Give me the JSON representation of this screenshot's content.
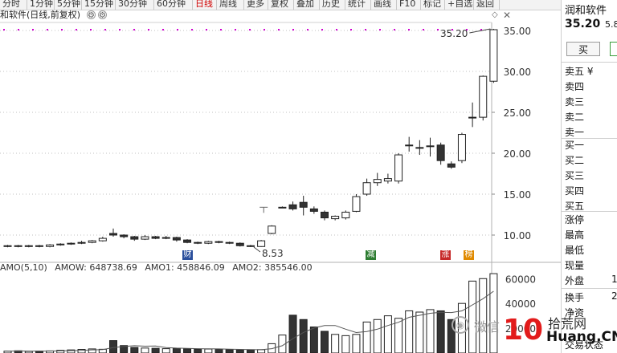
{
  "toolbar": {
    "items": [
      "分时",
      "1分钟",
      "5分钟",
      "15分钟",
      "30分钟",
      "60分钟",
      "日线",
      "周线",
      "更多",
      "复权",
      "叠加",
      "历史",
      "统计",
      "画线",
      "F10",
      "标记",
      "+自选",
      "返回"
    ],
    "active_index": 6
  },
  "title": {
    "stock": "和软件",
    "label": "和软件(日线,前复权)"
  },
  "chart": {
    "price_label_high": "35.20",
    "price_label_low": "8.53",
    "y_ticks": [
      "35.00",
      "30.00",
      "25.00",
      "20.00",
      "15.00",
      "10.00"
    ],
    "markers": [
      {
        "text": "财",
        "color": "#2a4f9c"
      },
      {
        "text": "减",
        "color": "#2e7d32"
      },
      {
        "text": "涨",
        "color": "#c62828"
      },
      {
        "text": "榜",
        "color": "#e08a00"
      }
    ]
  },
  "chart_data": {
    "type": "candlestick",
    "ylim": [
      7,
      37
    ],
    "y_ticks": [
      35,
      30,
      25,
      20,
      15,
      10
    ],
    "candles": [
      {
        "o": 8.6,
        "c": 8.7,
        "h": 8.8,
        "l": 8.5
      },
      {
        "o": 8.7,
        "c": 8.6,
        "h": 8.8,
        "l": 8.5
      },
      {
        "o": 8.6,
        "c": 8.7,
        "h": 8.8,
        "l": 8.5
      },
      {
        "o": 8.7,
        "c": 8.6,
        "h": 8.8,
        "l": 8.5
      },
      {
        "o": 8.6,
        "c": 8.8,
        "h": 8.9,
        "l": 8.5
      },
      {
        "o": 8.8,
        "c": 8.9,
        "h": 9.0,
        "l": 8.7
      },
      {
        "o": 8.9,
        "c": 9.0,
        "h": 9.1,
        "l": 8.8
      },
      {
        "o": 9.0,
        "c": 9.1,
        "h": 9.3,
        "l": 8.9
      },
      {
        "o": 9.1,
        "c": 9.3,
        "h": 9.4,
        "l": 9.0
      },
      {
        "o": 9.3,
        "c": 9.6,
        "h": 9.8,
        "l": 9.2
      },
      {
        "o": 10.2,
        "c": 10.0,
        "h": 10.8,
        "l": 9.8
      },
      {
        "o": 10.0,
        "c": 9.8,
        "h": 10.1,
        "l": 9.6
      },
      {
        "o": 9.8,
        "c": 9.5,
        "h": 9.9,
        "l": 9.3
      },
      {
        "o": 9.5,
        "c": 9.8,
        "h": 10.0,
        "l": 9.4
      },
      {
        "o": 9.8,
        "c": 9.6,
        "h": 9.9,
        "l": 9.5
      },
      {
        "o": 9.6,
        "c": 9.7,
        "h": 9.9,
        "l": 9.5
      },
      {
        "o": 9.7,
        "c": 9.4,
        "h": 9.8,
        "l": 9.2
      },
      {
        "o": 9.4,
        "c": 9.1,
        "h": 9.5,
        "l": 9.0
      },
      {
        "o": 9.1,
        "c": 9.0,
        "h": 9.2,
        "l": 8.9
      },
      {
        "o": 9.0,
        "c": 9.2,
        "h": 9.3,
        "l": 8.9
      },
      {
        "o": 9.2,
        "c": 9.1,
        "h": 9.3,
        "l": 9.0
      },
      {
        "o": 9.1,
        "c": 9.0,
        "h": 9.2,
        "l": 8.9
      },
      {
        "o": 9.0,
        "c": 8.7,
        "h": 9.1,
        "l": 8.6
      },
      {
        "o": 8.7,
        "c": 8.6,
        "h": 8.8,
        "l": 8.53
      },
      {
        "o": 8.6,
        "c": 9.3,
        "h": 9.4,
        "l": 8.55
      },
      {
        "o": 10.2,
        "c": 11.1,
        "h": 11.2,
        "l": 10.1
      },
      {
        "o": 13.4,
        "c": 13.4,
        "h": 13.5,
        "l": 13.3
      },
      {
        "o": 13.7,
        "c": 13.2,
        "h": 14.1,
        "l": 13.0
      },
      {
        "o": 14.0,
        "c": 13.4,
        "h": 14.8,
        "l": 12.4
      },
      {
        "o": 13.2,
        "c": 12.9,
        "h": 13.5,
        "l": 12.6
      },
      {
        "o": 12.8,
        "c": 12.1,
        "h": 13.0,
        "l": 11.8
      },
      {
        "o": 12.0,
        "c": 12.3,
        "h": 12.4,
        "l": 11.8
      },
      {
        "o": 12.1,
        "c": 12.8,
        "h": 13.0,
        "l": 11.9
      },
      {
        "o": 12.9,
        "c": 14.7,
        "h": 15.0,
        "l": 12.8
      },
      {
        "o": 15.0,
        "c": 16.4,
        "h": 16.9,
        "l": 14.8
      },
      {
        "o": 16.4,
        "c": 16.8,
        "h": 17.6,
        "l": 16.0
      },
      {
        "o": 16.6,
        "c": 16.9,
        "h": 17.5,
        "l": 16.3
      },
      {
        "o": 16.6,
        "c": 19.8,
        "h": 20.0,
        "l": 16.3
      },
      {
        "o": 21.0,
        "c": 21.0,
        "h": 22.0,
        "l": 20.2
      },
      {
        "o": 20.7,
        "c": 20.7,
        "h": 21.6,
        "l": 19.8
      },
      {
        "o": 20.9,
        "c": 20.9,
        "h": 21.9,
        "l": 19.6
      },
      {
        "o": 21.0,
        "c": 19.1,
        "h": 21.3,
        "l": 18.6
      },
      {
        "o": 18.7,
        "c": 18.3,
        "h": 19.0,
        "l": 18.1
      },
      {
        "o": 19.1,
        "c": 22.3,
        "h": 22.5,
        "l": 18.8
      },
      {
        "o": 24.4,
        "c": 24.4,
        "h": 26.2,
        "l": 23.2
      },
      {
        "o": 24.4,
        "c": 29.4,
        "h": 29.5,
        "l": 24.0
      },
      {
        "o": 28.8,
        "c": 35.1,
        "h": 35.2,
        "l": 28.6
      }
    ],
    "volume_ticks": [
      60000,
      40000,
      20000
    ],
    "volume_ylim": [
      0,
      66000
    ],
    "volumes": [
      1500,
      1800,
      1300,
      1600,
      1700,
      2200,
      2500,
      2900,
      3300,
      3000,
      10000,
      6000,
      4500,
      4000,
      3800,
      3500,
      3800,
      3300,
      3000,
      3200,
      3100,
      2600,
      2500,
      2300,
      2700,
      7500,
      14500,
      30500,
      27000,
      21000,
      17500,
      15000,
      14000,
      15000,
      25000,
      27000,
      30000,
      28000,
      34000,
      33000,
      35000,
      34000,
      27000,
      40000,
      58000,
      60000,
      64000
    ],
    "amo_ma5": [
      1500,
      1650,
      1533,
      1550,
      1580,
      1720,
      1860,
      2160,
      2520,
      2780,
      4380,
      5240,
      5860,
      5500,
      5660,
      4360,
      3920,
      3780,
      3480,
      3360,
      3280,
      3040,
      2880,
      2740,
      2640,
      3520,
      5920,
      11600,
      16540,
      20100,
      22100,
      22200,
      19200,
      16500,
      17300,
      19200,
      22200,
      24800,
      28800,
      30400,
      32000,
      32800,
      32600,
      34000,
      38800,
      43800,
      49800
    ],
    "amo_labels": {
      "title": "AMO(5,10)",
      "amow": "AMOW: 648738.69",
      "amo1": "AMO1: 458846.09",
      "amo2": "AMO2: 385546.00"
    }
  },
  "sidebar": {
    "name": "润和软件",
    "price": "35.20",
    "change": "5.8",
    "buy_label": "买",
    "ask_rows": [
      "卖五 ¥",
      "卖四",
      "卖三",
      "卖二",
      "卖一"
    ],
    "bid_rows": [
      "买一",
      "买二",
      "买三",
      "买四",
      "买五"
    ],
    "stat_rows": [
      "涨停",
      "最高",
      "最低",
      "现量",
      "外盘"
    ],
    "stat_value_waipan": "1",
    "turnover_rows": [
      "换手",
      "净资"
    ],
    "turnover_value": "2",
    "status_row": "交易状态"
  },
  "watermark": {
    "wechat": "微信",
    "logo": "10",
    "site": "拾荒网",
    "url": "Huang.CN"
  },
  "colors": {
    "up": "#000000",
    "down": "#333333",
    "grid": "#c8c8c8",
    "dotted": "#d000d0",
    "ma": "#555555"
  }
}
